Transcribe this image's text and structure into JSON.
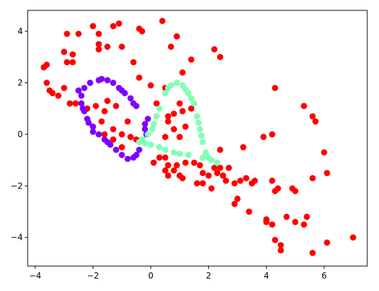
{
  "chart_data": {
    "type": "scatter",
    "xlim": [
      -4.26,
      7.49
    ],
    "ylim": [
      -5.11,
      4.81
    ],
    "xticks": [
      {
        "value": -4,
        "label": "−4"
      },
      {
        "value": -2,
        "label": "−2"
      },
      0,
      2,
      4,
      6
    ],
    "yticks": [
      {
        "value": -4,
        "label": "−4"
      },
      {
        "value": -2,
        "label": "−2"
      },
      0,
      2,
      4
    ],
    "series": [
      {
        "color": "#ff0000",
        "x": [
          -3.7,
          -3.6,
          -3.5,
          -3.4,
          -3.6,
          -3.2,
          -3.0,
          -2.9,
          -2.9,
          -2.7,
          -2.7,
          -2.5,
          -2.8,
          -2.6,
          -3.0,
          -2.0,
          -1.8,
          -1.8,
          -1.8,
          -1.5,
          -1.3,
          -1.1,
          -0.4,
          -0.3,
          0.4,
          0.9,
          0.7,
          -1.0,
          -0.6,
          -0.4,
          0.0,
          0.5,
          1.1,
          1.4,
          2.2,
          2.4,
          1.0,
          1.4,
          0.8,
          1.1,
          0.6,
          0.6,
          0.8,
          1.2,
          1.0,
          0.5,
          -0.8,
          -0.7,
          -1.3,
          -1.6,
          -1.5,
          -1.2,
          -1.9,
          -2.2,
          -1.7,
          -1.6,
          -1.3,
          -1.0,
          -0.5,
          0.1,
          0.3,
          0.6,
          0.9,
          0.5,
          0.8,
          1.0,
          1.1,
          0.6,
          1.2,
          1.5,
          1.7,
          1.8,
          1.6,
          1.8,
          2.0,
          2.1,
          2.2,
          2.3,
          2.4,
          2.5,
          2.6,
          2.4,
          2.7,
          2.9,
          3.1,
          3.3,
          3.5,
          3.6,
          3.2,
          2.9,
          3.0,
          3.4,
          3.9,
          4.2,
          4.3,
          4.2,
          4.3,
          4.4,
          4.0,
          4.0,
          4.2,
          4.3,
          4.5,
          4.5,
          4.7,
          4.9,
          5.0,
          5.0,
          5.3,
          5.3,
          5.6,
          5.7,
          5.6,
          5.6,
          5.4,
          6.0,
          6.1,
          6.1,
          7.0,
          -1.0,
          0.2,
          0.5
        ],
        "values": [
          2.6,
          2.7,
          1.7,
          1.6,
          2.0,
          1.5,
          3.2,
          3.9,
          2.8,
          2.8,
          3.1,
          3.9,
          1.2,
          1.2,
          1.8,
          4.2,
          3.9,
          3.5,
          3.3,
          3.4,
          4.2,
          4.3,
          4.1,
          4.0,
          4.4,
          3.8,
          3.4,
          3.4,
          2.8,
          2.2,
          1.9,
          1.8,
          2.4,
          2.9,
          3.3,
          3.0,
          1.2,
          1.0,
          0.8,
          0.9,
          0.7,
          0.5,
          0.2,
          0.3,
          -0.1,
          -0.1,
          0.5,
          -0.1,
          0.2,
          0.9,
          1.3,
          1.1,
          1.1,
          1.0,
          0.5,
          0.0,
          -0.2,
          -0.5,
          -0.2,
          -1.1,
          -0.9,
          -1.2,
          -1.2,
          -1.4,
          -1.4,
          -1.6,
          -1.7,
          -1.6,
          -1.1,
          -1.1,
          -1.2,
          -1.5,
          -1.9,
          -1.9,
          -1.6,
          -2.1,
          -1.3,
          -1.5,
          -1.3,
          -1.6,
          -1.8,
          -0.6,
          -1.3,
          -1.9,
          -1.8,
          -1.7,
          -1.9,
          -1.8,
          -0.5,
          -2.7,
          -2.5,
          -3.0,
          -0.1,
          0.0,
          1.8,
          -1.8,
          -2.2,
          -2.1,
          -3.3,
          -3.4,
          -3.5,
          -4.1,
          -4.3,
          -4.5,
          -3.2,
          -2.1,
          -2.2,
          -3.4,
          -3.5,
          1.1,
          0.7,
          0.5,
          -1.7,
          -4.6,
          -3.2,
          -0.7,
          -1.5,
          -4.2,
          -4.0,
          0.0,
          1.2,
          -0.9
        ]
      },
      {
        "color": "#8000ff",
        "x": [
          -0.1,
          -0.2,
          -0.3,
          -0.4,
          -0.6,
          -0.8,
          -1.0,
          -1.2,
          -1.4,
          -1.6,
          -1.8,
          -2.0,
          -2.2,
          -2.3,
          -2.4,
          -2.4,
          -2.3,
          -2.1,
          -1.8,
          -1.5,
          -1.3,
          -1.1,
          -0.9,
          -0.7,
          -0.6,
          -0.5,
          -2.5,
          -1.7,
          -2.0,
          -1.5,
          -0.5,
          -0.15,
          -0.2,
          -2.35,
          -2.15,
          -1.0
        ],
        "values": [
          0.6,
          0.2,
          -0.2,
          -0.6,
          -0.9,
          -0.95,
          -0.8,
          -0.6,
          -0.4,
          -0.2,
          0.0,
          0.3,
          0.6,
          0.9,
          1.2,
          1.5,
          1.8,
          2.0,
          2.1,
          2.1,
          2.0,
          1.8,
          1.6,
          1.4,
          1.2,
          1.1,
          1.7,
          2.15,
          0.1,
          -0.3,
          -0.8,
          0.0,
          0.4,
          1.0,
          0.45,
          1.7
        ]
      },
      {
        "color": "#80ffb4",
        "x": [
          -0.4,
          0.3,
          0.5,
          0.7,
          0.9,
          1.1,
          1.3,
          1.5,
          1.6,
          1.7,
          1.8,
          1.9,
          2.1,
          2.3,
          1.8,
          1.3,
          0.8,
          0.3,
          0.0,
          -0.3,
          -0.1,
          0.1,
          0.2,
          0.6,
          1.4,
          1.65,
          1.75,
          2.0,
          1.0,
          0.5,
          -0.2,
          0.05,
          1.2
        ],
        "values": [
          -0.3,
          1.0,
          1.6,
          1.9,
          2.0,
          1.9,
          1.6,
          1.2,
          0.7,
          0.2,
          -0.3,
          -0.7,
          -1.0,
          -1.1,
          -0.9,
          -0.8,
          -0.7,
          -0.5,
          -0.4,
          -0.2,
          0.0,
          0.4,
          0.7,
          1.8,
          1.4,
          0.45,
          -0.05,
          -0.9,
          -0.75,
          -0.6,
          -0.35,
          0.2,
          1.75
        ]
      }
    ]
  }
}
